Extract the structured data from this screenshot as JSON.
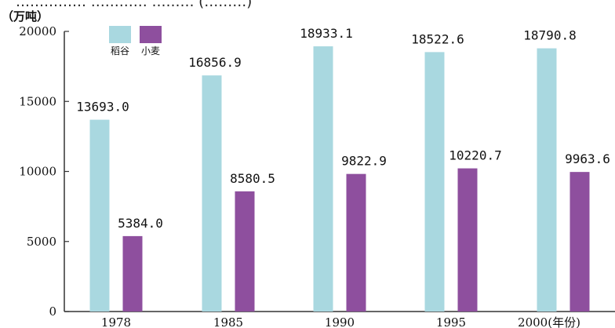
{
  "header_fragment": "…………… ………… ……… (………)",
  "chart_data": {
    "type": "bar",
    "ylabel": "（万吨）",
    "xlabel_suffix": "(年份)",
    "categories": [
      "1978",
      "1985",
      "1990",
      "1995",
      "2000"
    ],
    "ylim": [
      0,
      20000
    ],
    "yticks": [
      0,
      5000,
      10000,
      15000,
      20000
    ],
    "legend_position": "top-left",
    "series": [
      {
        "name": "稻谷",
        "color": "#a9d8e0",
        "values": [
          13693.0,
          16856.9,
          18933.1,
          18522.6,
          18790.8
        ],
        "labels": [
          "13693.0",
          "16856.9",
          "18933.1",
          "18522.6",
          "18790.8"
        ]
      },
      {
        "name": "小麦",
        "color": "#8e4f9e",
        "values": [
          5384.0,
          8580.5,
          9822.9,
          10220.7,
          9963.6
        ],
        "labels": [
          "5384.0",
          "8580.5",
          "9822.9",
          "10220.7",
          "9963.6"
        ]
      }
    ]
  }
}
